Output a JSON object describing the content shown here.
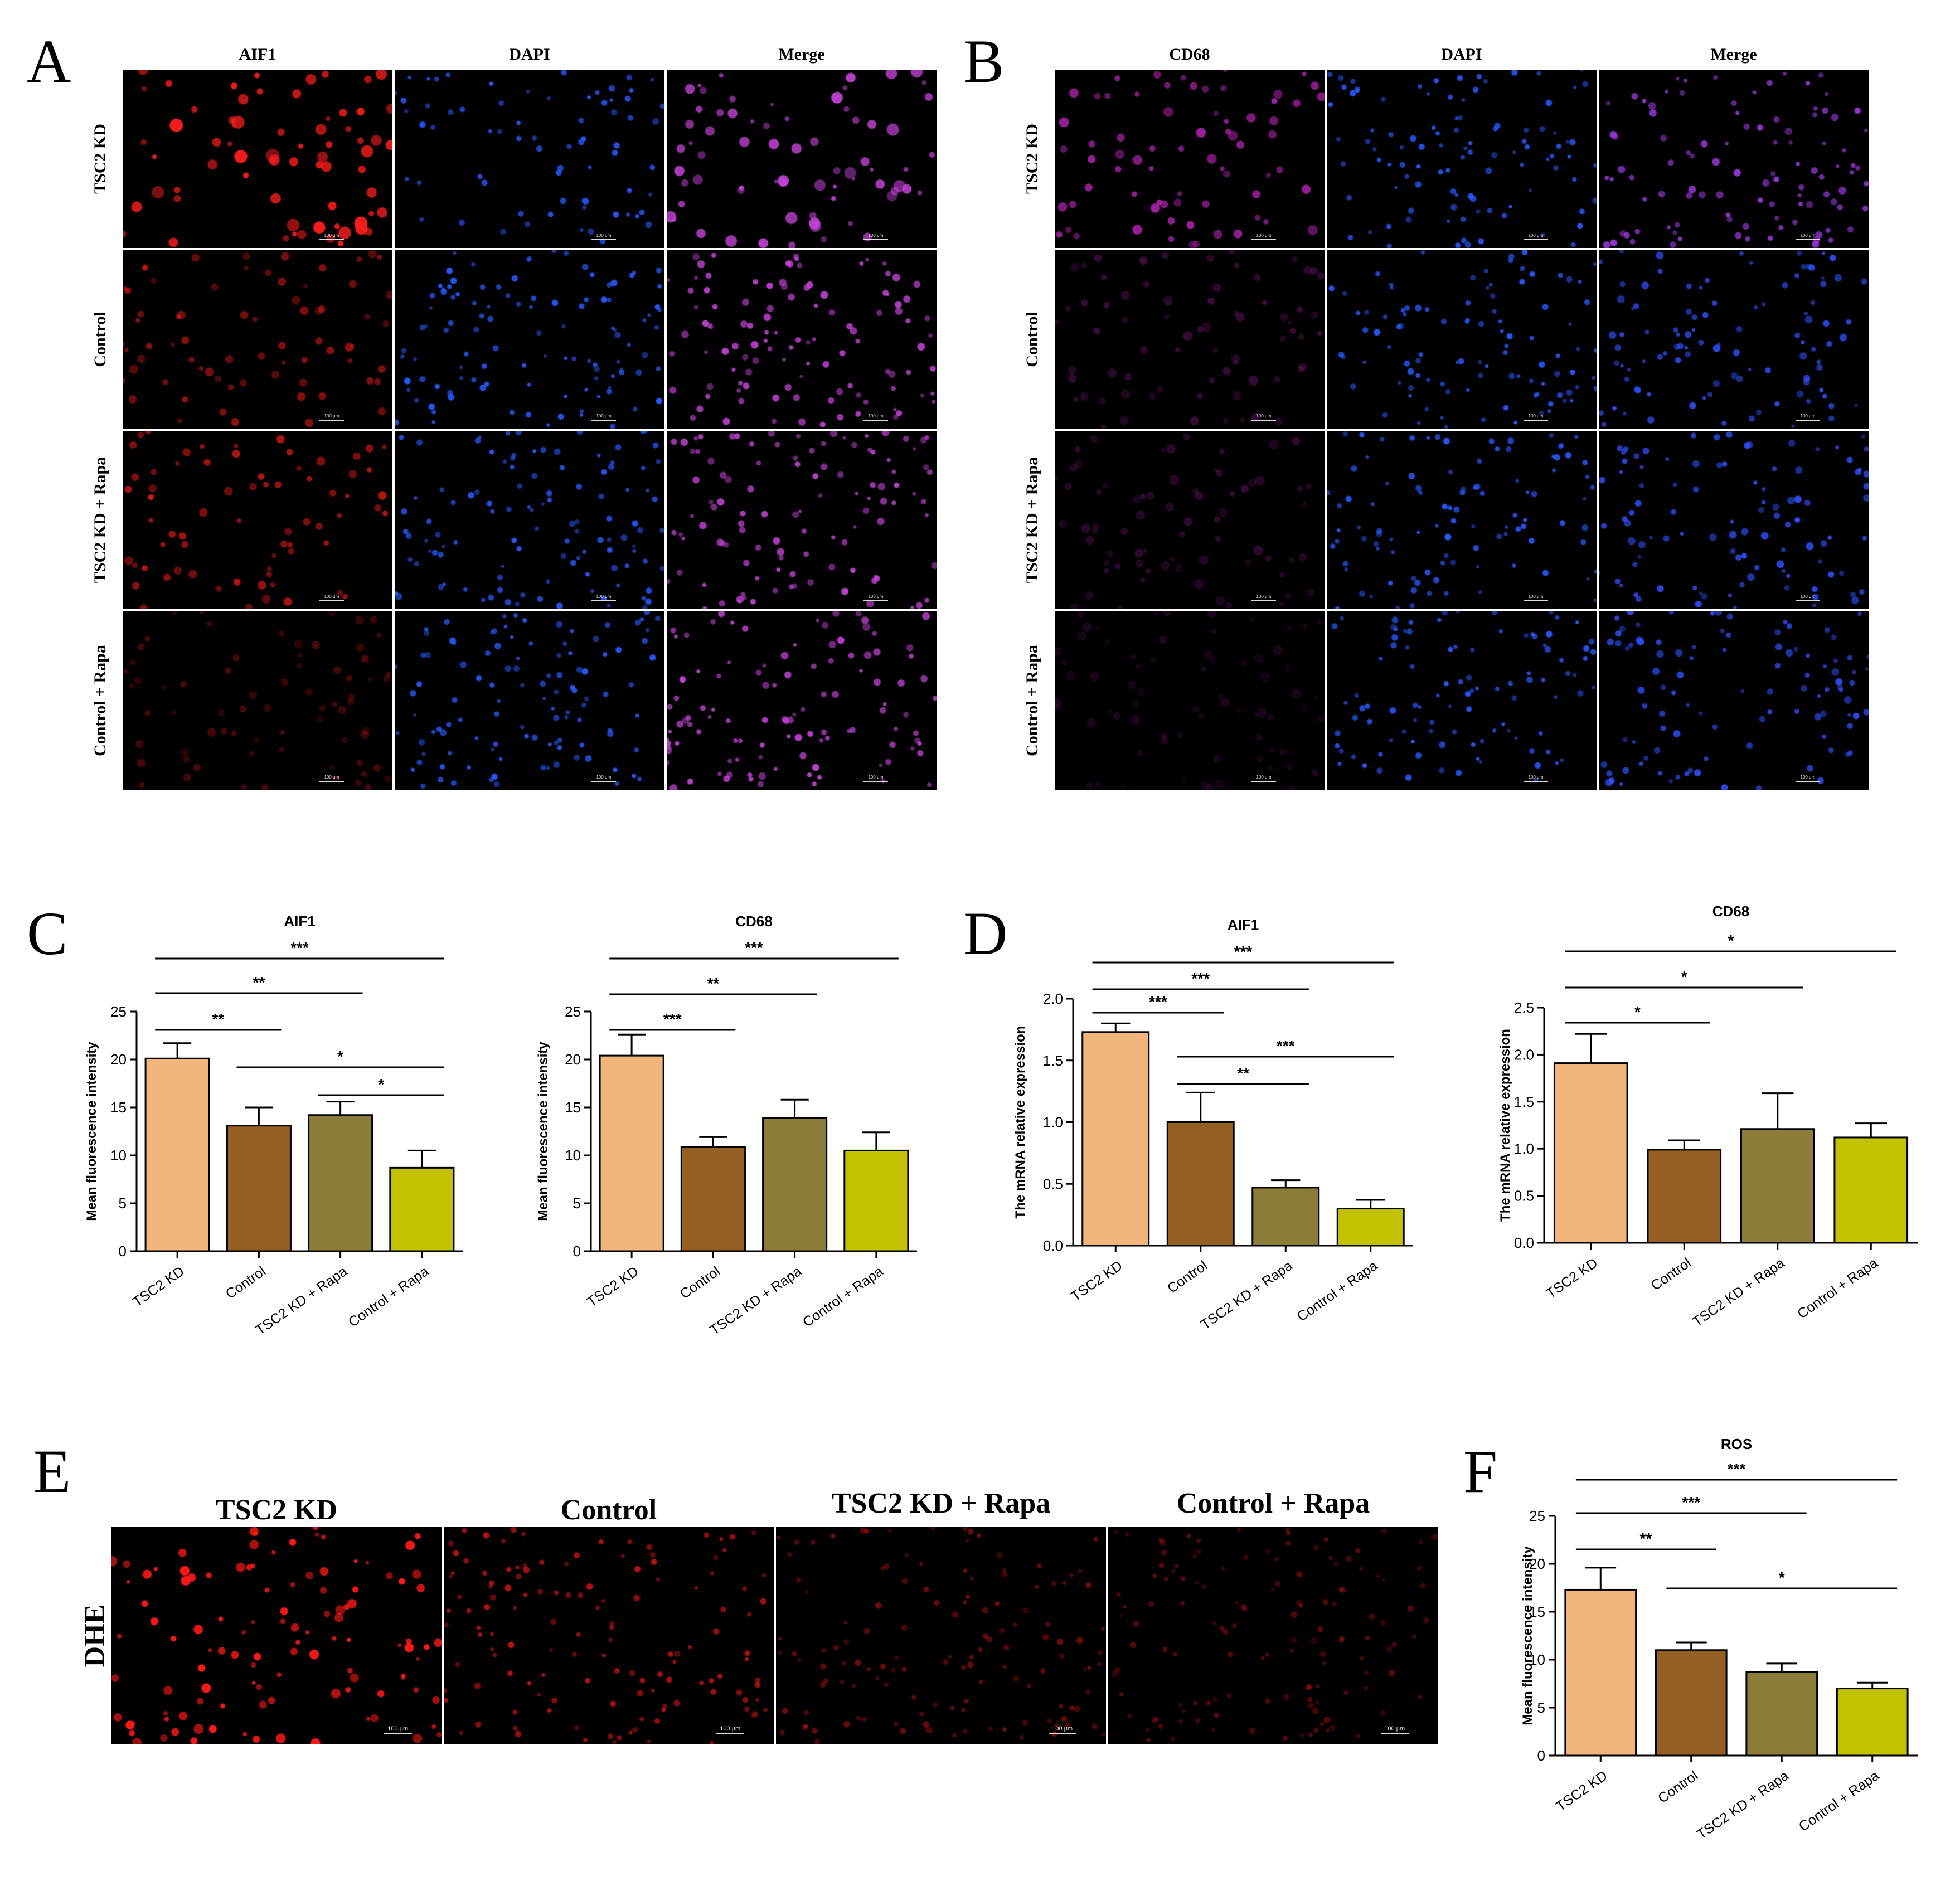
{
  "panel_letters": {
    "A": "A",
    "B": "B",
    "C": "C",
    "D": "D",
    "E": "E",
    "F": "F"
  },
  "panel_a": {
    "columns": [
      "AIF1",
      "DAPI",
      "Merge"
    ],
    "rows": [
      "TSC2 KD",
      "Control",
      "TSC2 KD + Rapa",
      "Control + Rapa"
    ],
    "scale_text": "100 μm"
  },
  "panel_b": {
    "columns": [
      "CD68",
      "DAPI",
      "Merge"
    ],
    "rows": [
      "TSC2 KD",
      "Control",
      "TSC2 KD + Rapa",
      "Control + Rapa"
    ],
    "scale_text": "100 μm"
  },
  "panel_e": {
    "columns": [
      "TSC2 KD",
      "Control",
      "TSC2 KD + Rapa",
      "Control + Rapa"
    ],
    "row_label": "DHE",
    "scale_text": "100 μm"
  },
  "colors": {
    "bar1": "#f2b67c",
    "bar2": "#955e22",
    "bar3": "#8b7c38",
    "bar4": "#c2c200",
    "red_stain": "#ff2020",
    "blue_stain": "#2050ff",
    "magenta_stain": "#c040c0"
  },
  "chart_data": [
    {
      "type": "bar",
      "title": "AIF1",
      "ylabel": "Mean fluorescence intensity",
      "categories": [
        "TSC2 KD",
        "Control",
        "TSC2 KD + Rapa",
        "Control + Rapa"
      ],
      "values": [
        20.1,
        13.1,
        14.2,
        8.7
      ],
      "errors": [
        1.6,
        1.9,
        1.4,
        1.8
      ],
      "ylim": [
        0,
        25
      ],
      "yticks": [
        "0",
        "5",
        "10",
        "15",
        "20",
        "25"
      ],
      "significance": [
        {
          "from": 0,
          "to": 1,
          "label": "**"
        },
        {
          "from": 0,
          "to": 2,
          "label": "**"
        },
        {
          "from": 0,
          "to": 3,
          "label": "***"
        },
        {
          "from": 1,
          "to": 3,
          "label": "*"
        },
        {
          "from": 2,
          "to": 3,
          "label": "*"
        }
      ]
    },
    {
      "type": "bar",
      "title": "CD68",
      "ylabel": "Mean fluorescence intensity",
      "categories": [
        "TSC2 KD",
        "Control",
        "TSC2 KD + Rapa",
        "Control + Rapa"
      ],
      "values": [
        20.4,
        10.9,
        13.9,
        10.5
      ],
      "errors": [
        2.2,
        1.0,
        1.9,
        1.9
      ],
      "ylim": [
        0,
        25
      ],
      "yticks": [
        "0",
        "5",
        "10",
        "15",
        "20",
        "25"
      ],
      "significance": [
        {
          "from": 0,
          "to": 1,
          "label": "***"
        },
        {
          "from": 0,
          "to": 2,
          "label": "**"
        },
        {
          "from": 0,
          "to": 3,
          "label": "***"
        }
      ]
    },
    {
      "type": "bar",
      "title": "AIF1",
      "ylabel": "The mRNA relative  expression",
      "categories": [
        "TSC2 KD",
        "Control",
        "TSC2 KD + Rapa",
        "Control + Rapa"
      ],
      "values": [
        1.73,
        1.0,
        0.47,
        0.3
      ],
      "errors": [
        0.07,
        0.24,
        0.06,
        0.07
      ],
      "ylim": [
        0,
        2.0
      ],
      "yticks": [
        "0.0",
        "0.5",
        "1.0",
        "1.5",
        "2.0"
      ],
      "significance": [
        {
          "from": 0,
          "to": 1,
          "label": "***"
        },
        {
          "from": 0,
          "to": 2,
          "label": "***"
        },
        {
          "from": 0,
          "to": 3,
          "label": "***"
        },
        {
          "from": 1,
          "to": 2,
          "label": "**"
        },
        {
          "from": 1,
          "to": 3,
          "label": "***"
        }
      ]
    },
    {
      "type": "bar",
      "title": "CD68",
      "ylabel": "The mRNA relative expression",
      "categories": [
        "TSC2 KD",
        "Control",
        "TSC2 KD + Rapa",
        "Control + Rapa"
      ],
      "values": [
        1.91,
        0.99,
        1.21,
        1.12
      ],
      "errors": [
        0.31,
        0.1,
        0.38,
        0.15
      ],
      "ylim": [
        0,
        2.5
      ],
      "yticks": [
        "0.0",
        "0.5",
        "1.0",
        "1.5",
        "2.0",
        "2.5"
      ],
      "significance": [
        {
          "from": 0,
          "to": 1,
          "label": "*"
        },
        {
          "from": 0,
          "to": 2,
          "label": "*"
        },
        {
          "from": 0,
          "to": 3,
          "label": "*"
        }
      ]
    },
    {
      "type": "bar",
      "title": "ROS",
      "ylabel": "Mean fluorescence intensity",
      "categories": [
        "TSC2 KD",
        "Control",
        "TSC2 KD + Rapa",
        "Control + Rapa"
      ],
      "values": [
        17.3,
        11.0,
        8.7,
        7.0
      ],
      "errors": [
        2.3,
        0.8,
        0.9,
        0.6
      ],
      "ylim": [
        0,
        25
      ],
      "yticks": [
        "0",
        "5",
        "10",
        "15",
        "20",
        "25"
      ],
      "significance": [
        {
          "from": 0,
          "to": 1,
          "label": "**"
        },
        {
          "from": 0,
          "to": 2,
          "label": "***"
        },
        {
          "from": 0,
          "to": 3,
          "label": "***"
        },
        {
          "from": 1,
          "to": 3,
          "label": "*"
        }
      ]
    }
  ]
}
